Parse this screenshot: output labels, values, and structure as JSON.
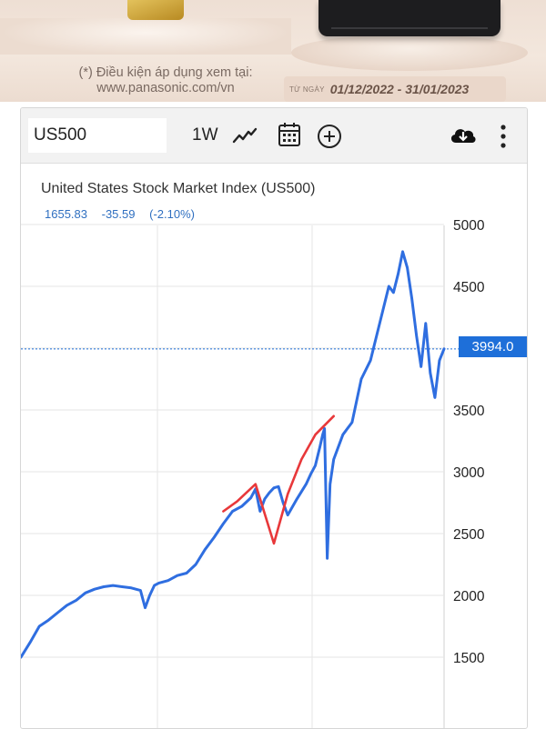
{
  "ad": {
    "note_line1": "(*) Điều kiện áp dụng xem tại:",
    "note_line2": "www.panasonic.com/vn",
    "date_prefix": "TỪ NGÀY",
    "date_range": "01/12/2022 - 31/01/2023"
  },
  "toolbar": {
    "symbol": "US500",
    "timeframe": "1W",
    "icons": [
      "line-chart-icon",
      "calendar-icon",
      "add-indicator-icon",
      "download-icon",
      "more-options-icon"
    ]
  },
  "header": {
    "title": "United States Stock Market Index (US500)",
    "price": "1655.83",
    "change": "-35.59",
    "change_pct": "(-2.10%)"
  },
  "current_price_label": "3994.0",
  "colors": {
    "series": "#2f6ee0",
    "annotation": "#e8383a",
    "badge": "#1e6fd9",
    "grid": "#e6e6e6",
    "quote_text": "#2f6fc0"
  },
  "chart_data": {
    "type": "line",
    "title": "United States Stock Market Index (US500)",
    "xlabel": "",
    "ylabel": "",
    "ylim": [
      1200,
      5150
    ],
    "yticks": [
      1500,
      2000,
      2500,
      3000,
      3500,
      4000,
      4500,
      5000
    ],
    "ytick_labels": [
      "1500",
      "2000",
      "2500",
      "3000",
      "3500",
      "",
      "4500",
      "5000"
    ],
    "grid": true,
    "current_value": 3994.0,
    "xlim": [
      0,
      460
    ],
    "series": [
      {
        "color": "#2f6ee0",
        "x": [
          0,
          10,
          20,
          30,
          40,
          50,
          60,
          70,
          80,
          90,
          100,
          110,
          120,
          130,
          135,
          140,
          145,
          150,
          160,
          170,
          180,
          190,
          200,
          210,
          220,
          230,
          240,
          250,
          255,
          260,
          265,
          270,
          275,
          280,
          285,
          290,
          300,
          310,
          315,
          320,
          325,
          328,
          330,
          333,
          336,
          340,
          350,
          360,
          370,
          380,
          390,
          400,
          405,
          410,
          415,
          420,
          425,
          430,
          435,
          440,
          445,
          450,
          455,
          460
        ],
        "y": [
          1500,
          1620,
          1750,
          1800,
          1860,
          1920,
          1960,
          2020,
          2050,
          2070,
          2080,
          2070,
          2060,
          2040,
          1900,
          2000,
          2080,
          2100,
          2120,
          2160,
          2180,
          2250,
          2370,
          2470,
          2580,
          2680,
          2720,
          2790,
          2860,
          2680,
          2780,
          2830,
          2870,
          2880,
          2750,
          2650,
          2780,
          2900,
          2980,
          3050,
          3200,
          3300,
          3350,
          2300,
          2900,
          3100,
          3300,
          3400,
          3750,
          3900,
          4200,
          4500,
          4450,
          4600,
          4780,
          4650,
          4400,
          4100,
          3850,
          4200,
          3800,
          3600,
          3900,
          3994
        ]
      },
      {
        "color": "#e8383a",
        "x": [
          220,
          235,
          255,
          275,
          290,
          305,
          320,
          340
        ],
        "y": [
          2680,
          2760,
          2900,
          2420,
          2820,
          3100,
          3300,
          3450
        ]
      }
    ]
  }
}
